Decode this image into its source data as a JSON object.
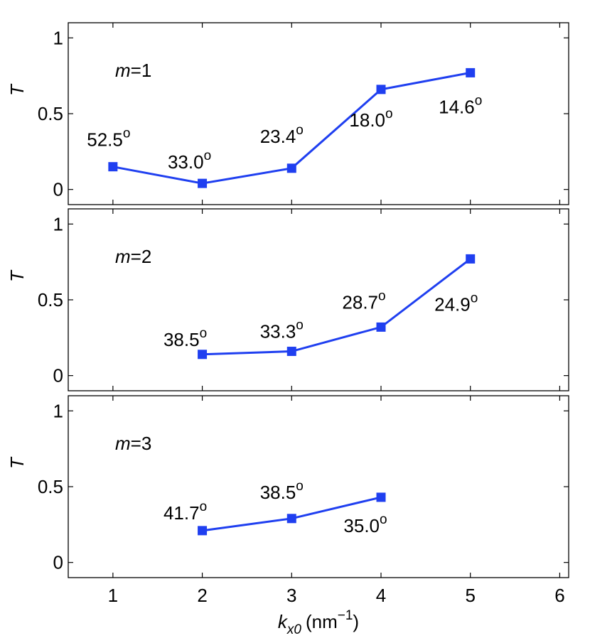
{
  "chart_data": [
    {
      "type": "line",
      "panel_label": "m=1",
      "panel_label_parts": {
        "var": "m",
        "rest": "=1"
      },
      "ylabel": "T",
      "xlabel": "",
      "x": [
        1,
        2,
        3,
        4,
        5
      ],
      "values": [
        0.15,
        0.04,
        0.14,
        0.66,
        0.77
      ],
      "annotations": [
        "52.5",
        "33.0",
        "23.4",
        "18.0",
        "14.6"
      ],
      "annotation_superscript": "o",
      "xlim": [
        0.5,
        6.1
      ],
      "ylim": [
        -0.1,
        1.1
      ],
      "yticks": [
        "0",
        "0.5",
        "1"
      ],
      "xticks": []
    },
    {
      "type": "line",
      "panel_label": "m=2",
      "panel_label_parts": {
        "var": "m",
        "rest": "=2"
      },
      "ylabel": "T",
      "xlabel": "",
      "x": [
        2,
        3,
        4,
        5
      ],
      "values": [
        0.14,
        0.16,
        0.32,
        0.77
      ],
      "annotations": [
        "38.5",
        "33.3",
        "28.7",
        "24.9"
      ],
      "annotation_superscript": "o",
      "xlim": [
        0.5,
        6.1
      ],
      "ylim": [
        -0.1,
        1.1
      ],
      "yticks": [
        "0",
        "0.5",
        "1"
      ],
      "xticks": []
    },
    {
      "type": "line",
      "panel_label": "m=3",
      "panel_label_parts": {
        "var": "m",
        "rest": "=3"
      },
      "ylabel": "T",
      "xlabel": "k_x0 (nm^-1)",
      "xlabel_parts": {
        "var": "k",
        "sub": "x0",
        "unit": "(nm",
        "sup": "−1",
        "close": ")"
      },
      "x": [
        2,
        3,
        4
      ],
      "values": [
        0.21,
        0.29,
        0.43
      ],
      "annotations": [
        "41.7",
        "38.5",
        "35.0"
      ],
      "annotation_superscript": "o",
      "xlim": [
        0.5,
        6.1
      ],
      "ylim": [
        -0.1,
        1.1
      ],
      "yticks": [
        "0",
        "0.5",
        "1"
      ],
      "xticks": [
        "1",
        "2",
        "3",
        "4",
        "5",
        "6"
      ]
    }
  ],
  "colors": {
    "series": "#1f3ff0",
    "axes": "#000000"
  }
}
